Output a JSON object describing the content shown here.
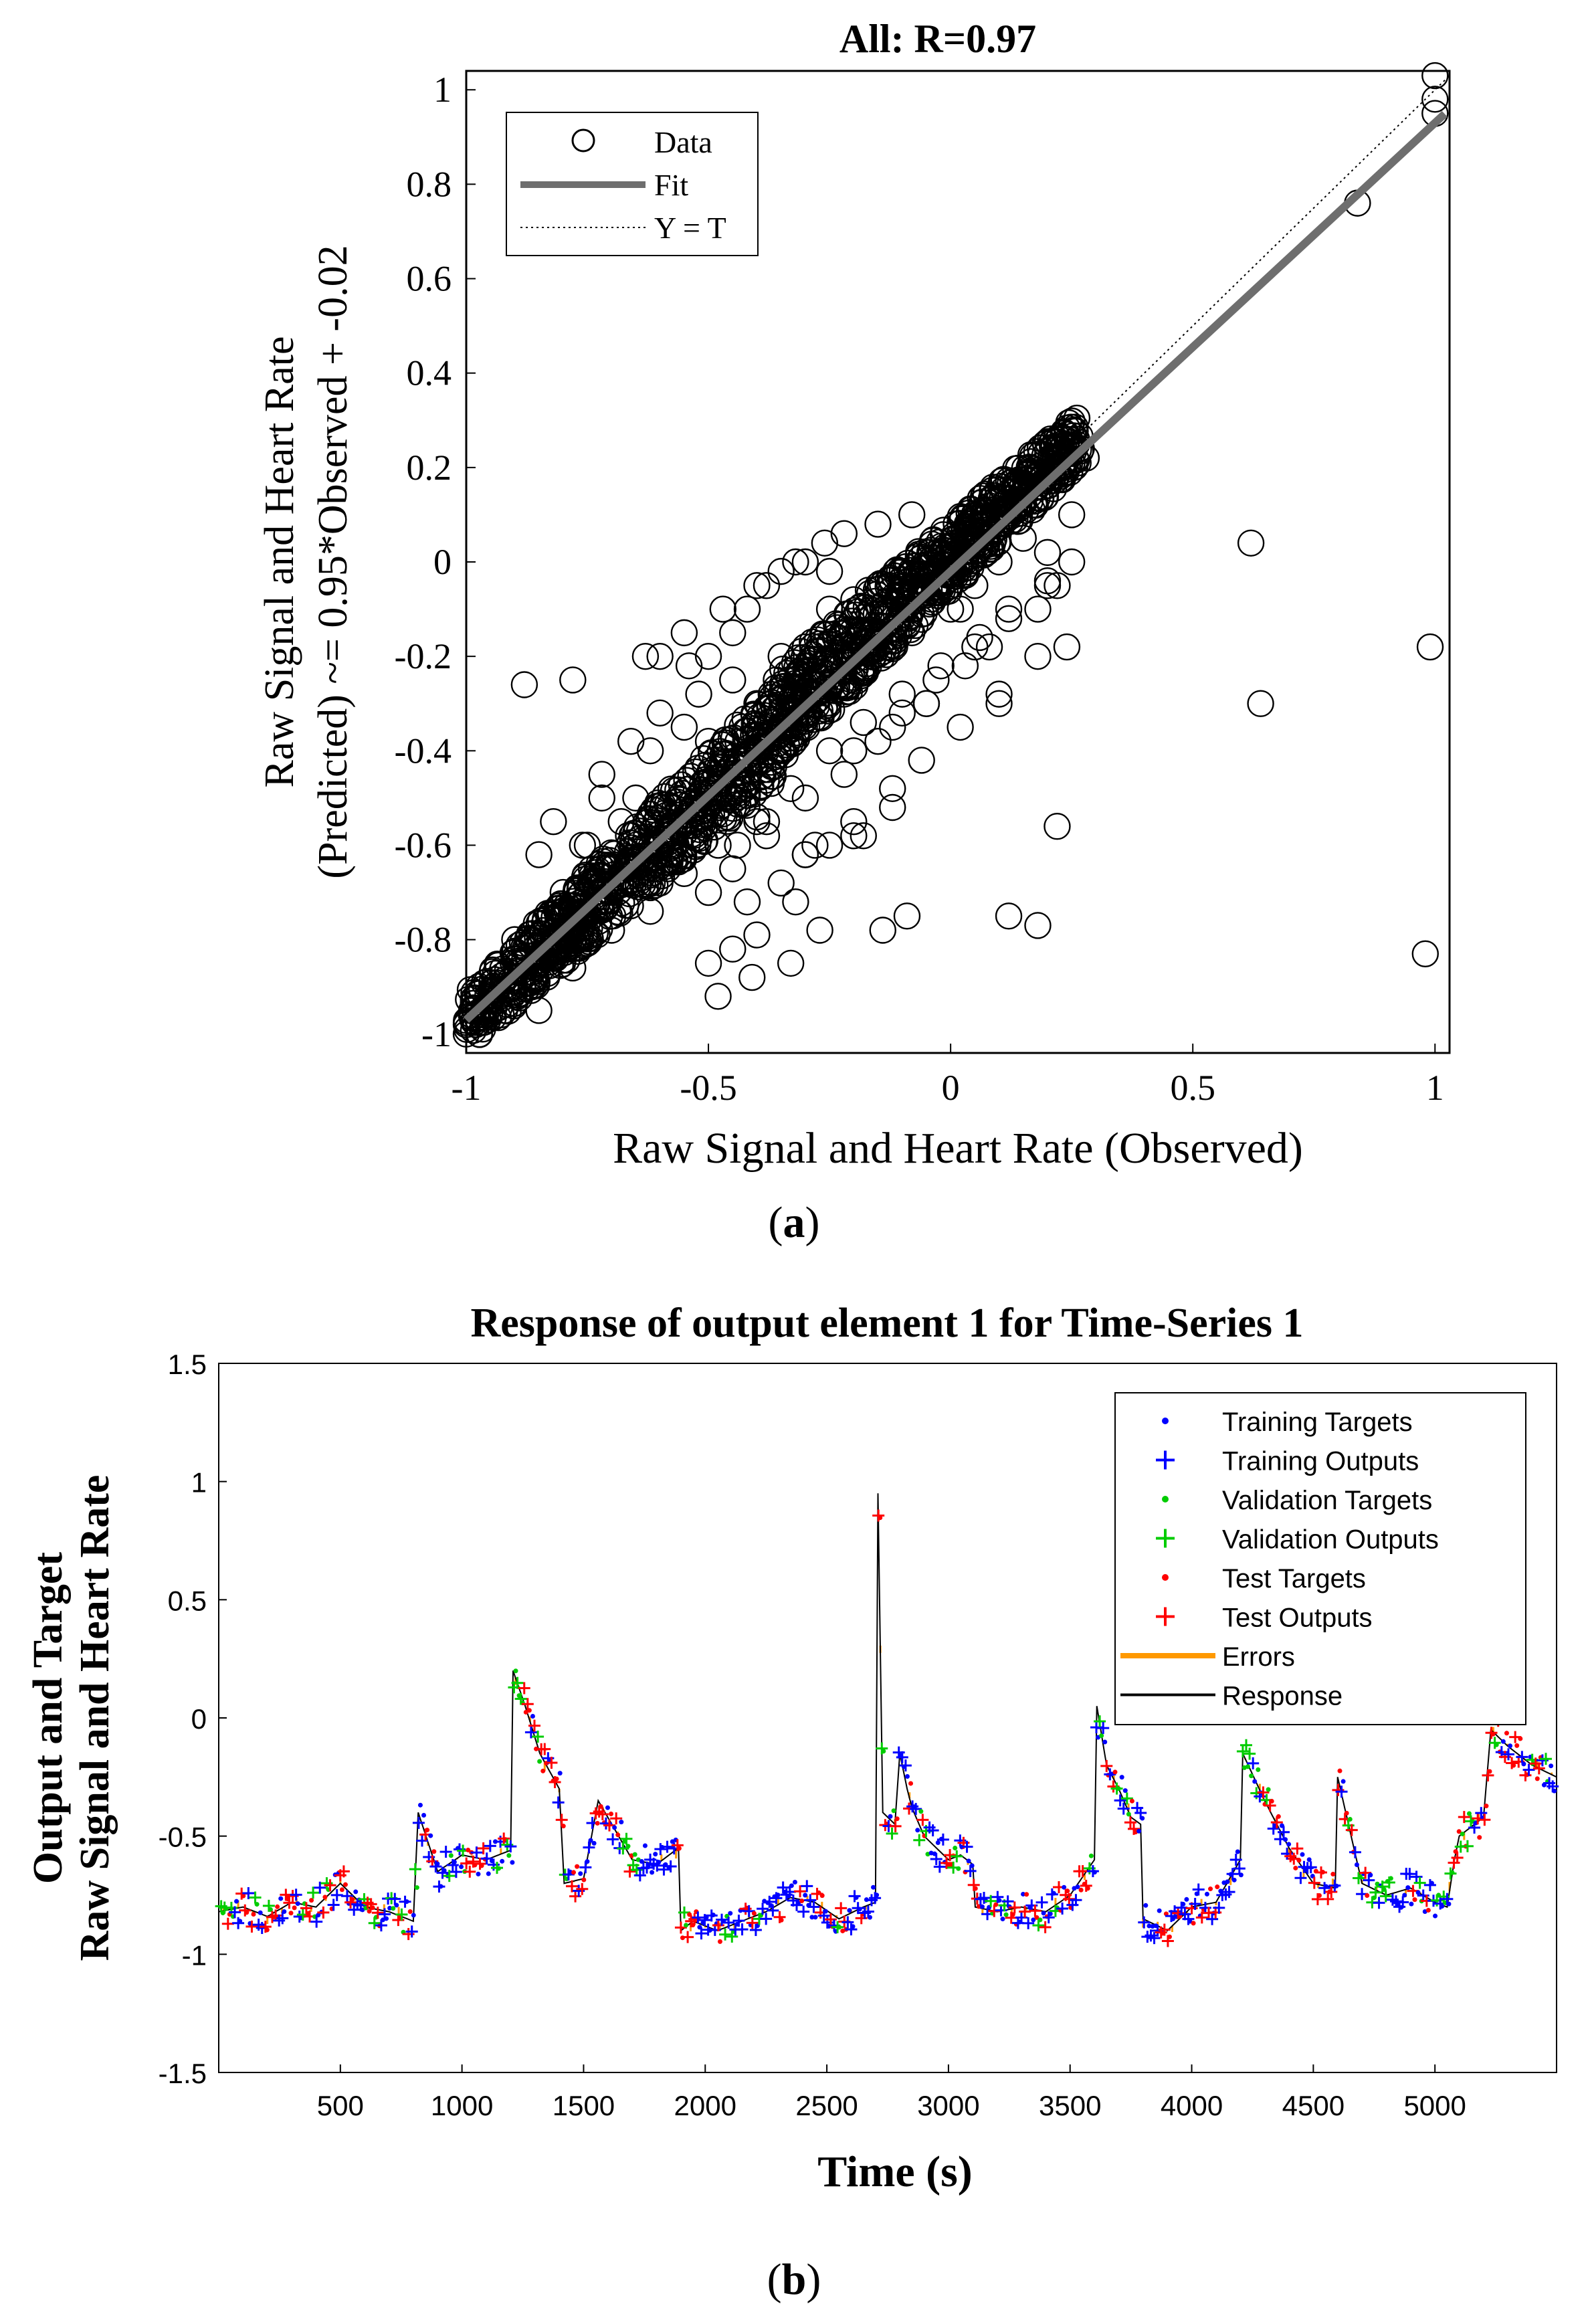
{
  "figure": {
    "caption_a": "a",
    "caption_b": "b"
  },
  "chart_data": [
    {
      "type": "scatter",
      "title": "All: R=0.97",
      "xlabel": "Raw Signal and Heart Rate (Observed)",
      "ylabel_line1": "Raw Signal and Heart Rate",
      "ylabel_line2": "(Predicted) ~= 0.95*Observed + -0.02",
      "xlim": [
        -1,
        1.03
      ],
      "ylim": [
        -1.04,
        1.04
      ],
      "xticks": [
        -1,
        -0.5,
        0,
        0.5,
        1
      ],
      "xtick_labels": [
        "-1",
        "-0.5",
        "0",
        "0.5",
        "1"
      ],
      "yticks": [
        -1,
        -0.8,
        -0.6,
        -0.4,
        -0.2,
        0,
        0.2,
        0.4,
        0.6,
        0.8,
        1
      ],
      "ytick_labels": [
        "-1",
        "-0.8",
        "-0.6",
        "-0.4",
        "-0.2",
        "0",
        "0.2",
        "0.4",
        "0.6",
        "0.8",
        "1"
      ],
      "fit": {
        "slope": 0.95,
        "intercept": -0.02,
        "x_range": [
          -1,
          1
        ]
      },
      "legend": {
        "position": "top-left",
        "entries": [
          {
            "label": "Data",
            "style": "circle"
          },
          {
            "label": "Fit",
            "style": "thick-line"
          },
          {
            "label": "Y = T",
            "style": "dotted-line"
          }
        ]
      },
      "colors": {
        "data": "#000000",
        "fit": "#6e6e6e",
        "identity": "#000000"
      },
      "series": [
        {
          "name": "Data",
          "x": [
            -1,
            -0.98,
            -0.96,
            -0.95,
            -0.93,
            -0.9,
            -0.88,
            -0.85,
            -0.82,
            -0.8,
            -0.78,
            -0.75,
            -0.72,
            -0.7,
            -0.68,
            -0.65,
            -0.62,
            -0.6,
            -0.58,
            -0.55,
            -0.52,
            -0.5,
            -0.48,
            -0.45,
            -0.42,
            -0.4,
            -0.38,
            -0.35,
            -0.32,
            -0.3,
            -0.28,
            -0.25,
            -0.22,
            -0.2,
            -0.18,
            -0.15,
            -0.12,
            -0.1,
            -0.08,
            -0.05,
            -0.02,
            0,
            0.03,
            0.06,
            0.1,
            0.14,
            0.18,
            0.22,
            0.25,
            -0.9,
            -0.85,
            -0.82,
            -0.8,
            -0.75,
            -0.72,
            -0.65,
            -0.62,
            -0.6,
            -0.55,
            -0.5,
            -0.45,
            -0.4,
            -0.35,
            -0.3,
            -0.25,
            -0.2,
            -0.15,
            -0.1,
            -0.05,
            0,
            0.05,
            0.1,
            0.15,
            0.2,
            0.25,
            -0.85,
            -0.78,
            -0.7,
            -0.62,
            -0.55,
            -0.48,
            -0.4,
            -0.33,
            -0.25,
            -0.18,
            -0.1,
            -0.02,
            0.06,
            0.12,
            0.2,
            -0.5,
            -0.45,
            -0.42,
            -0.38,
            -0.35,
            -0.3,
            -0.26,
            -0.22,
            -0.15,
            -0.08,
            -0.2,
            -0.12,
            -0.05,
            0.03,
            0.08,
            0.18,
            0.22,
            0.25,
            -1,
            -0.9,
            -0.76,
            -0.68,
            -0.58,
            -0.5,
            -0.45,
            -0.38,
            -0.3,
            -0.22,
            -0.15,
            -0.1,
            -0.03,
            0.05,
            0.12,
            0.2,
            -0.42,
            -0.35,
            -0.28,
            -0.2,
            -0.12,
            -0.06,
            0.02,
            0.1,
            -0.55,
            -0.47,
            -0.4,
            -0.32,
            -0.25,
            -0.17,
            -0.1,
            -0.02,
            -0.88,
            -0.78,
            -0.63,
            -0.5,
            -0.4,
            -0.3,
            -0.25,
            -0.18,
            -0.12,
            -0.05,
            0.1,
            0.18,
            0.24,
            0.62,
            0.64,
            0.84,
            1,
            1,
            1,
            0.99,
            0.98,
            -0.14,
            -0.09,
            0.12,
            0.18,
            0.22,
            -0.5,
            -0.45,
            -0.4,
            -0.32,
            -0.48,
            -0.41,
            -0.33,
            -0.27,
            -0.72,
            -0.66,
            -0.6,
            -0.52,
            -0.8,
            -0.74,
            -0.68,
            -0.56,
            -0.44,
            -0.38,
            -0.3,
            -0.2,
            -0.6,
            -0.54,
            -0.36,
            -0.28,
            -0.22,
            -0.16,
            -0.08,
            0.02,
            0.28,
            0.27,
            0.26,
            0.24,
            0.22
          ],
          "y": [
            -1,
            -0.98,
            -0.96,
            -0.94,
            -0.92,
            -0.9,
            -0.87,
            -0.85,
            -0.82,
            -0.8,
            -0.77,
            -0.75,
            -0.72,
            -0.7,
            -0.67,
            -0.65,
            -0.62,
            -0.6,
            -0.57,
            -0.55,
            -0.52,
            -0.5,
            -0.47,
            -0.45,
            -0.42,
            -0.4,
            -0.38,
            -0.35,
            -0.32,
            -0.3,
            -0.28,
            -0.26,
            -0.23,
            -0.21,
            -0.19,
            -0.16,
            -0.14,
            -0.12,
            -0.1,
            -0.07,
            -0.04,
            -0.02,
            0,
            0.04,
            0.08,
            0.12,
            0.16,
            0.2,
            0.24,
            -0.8,
            -0.62,
            -0.55,
            -0.7,
            -0.6,
            -0.5,
            -0.5,
            -0.4,
            -0.68,
            -0.35,
            -0.38,
            -0.25,
            -0.3,
            -0.2,
            -0.18,
            -0.1,
            -0.08,
            -0.05,
            -0.02,
            -0.05,
            -0.1,
            -0.05,
            0,
            0.05,
            0.02,
            0.1,
            -0.95,
            -0.86,
            -0.78,
            -0.74,
            -0.66,
            -0.6,
            -0.54,
            -0.48,
            -0.4,
            -0.34,
            -0.28,
            -0.22,
            -0.16,
            -0.1,
            -0.04,
            -0.2,
            -0.15,
            -0.1,
            -0.05,
            -0.02,
            0,
            0.04,
            0.06,
            0.08,
            0.1,
            -0.4,
            -0.35,
            -0.3,
            -0.22,
            -0.18,
            -0.1,
            -0.05,
            0,
            -0.98,
            -0.88,
            -0.6,
            -0.55,
            -0.62,
            -0.7,
            -0.65,
            -0.58,
            -0.5,
            -0.45,
            -0.38,
            -0.32,
            -0.25,
            -0.18,
            -0.12,
            -0.05,
            -0.72,
            -0.68,
            -0.6,
            -0.55,
            -0.48,
            -0.42,
            -0.35,
            -0.28,
            -0.15,
            -0.1,
            -0.05,
            0,
            -0.02,
            -0.06,
            -0.1,
            0.02,
            -0.26,
            -0.25,
            -0.2,
            -0.55,
            -0.55,
            -0.62,
            -0.6,
            -0.58,
            -0.52,
            -0.3,
            -0.3,
            -0.2,
            -0.18,
            0.04,
            -0.3,
            0.76,
            1.03,
            0.98,
            0.95,
            -0.18,
            -0.83,
            -0.78,
            -0.75,
            -0.75,
            -0.77,
            -0.56,
            -0.85,
            -0.82,
            -0.79,
            -0.72,
            -0.92,
            -0.88,
            -0.85,
            -0.78,
            -0.45,
            -0.38,
            -0.32,
            -0.28,
            -0.8,
            -0.74,
            -0.68,
            -0.62,
            -0.6,
            -0.55,
            -0.62,
            -0.58,
            -0.2,
            -0.22,
            -0.25,
            -0.26,
            -0.28,
            -0.2,
            -0.15,
            -0.1,
            0.22,
            0.24,
            0.26,
            0.27,
            0.24
          ]
        }
      ]
    },
    {
      "type": "line",
      "title": "Response of output element 1 for Time-Series 1",
      "xlabel": "Time (s)",
      "ylabel_line1": "Output and Target",
      "ylabel_line2": "Raw Signal and Heart Rate",
      "xlim": [
        0,
        5500
      ],
      "ylim": [
        -1.5,
        1.5
      ],
      "xticks": [
        500,
        1000,
        1500,
        2000,
        2500,
        3000,
        3500,
        4000,
        4500,
        5000
      ],
      "xtick_labels": [
        "500",
        "1000",
        "1500",
        "2000",
        "2500",
        "3000",
        "3500",
        "4000",
        "4500",
        "5000"
      ],
      "yticks": [
        -1.5,
        -1,
        -0.5,
        0,
        0.5,
        1,
        1.5
      ],
      "ytick_labels": [
        "-1.5",
        "-1",
        "-0.5",
        "0",
        "0.5",
        "1",
        "1.5"
      ],
      "legend": {
        "position": "top-right",
        "entries": [
          {
            "label": "Training Targets",
            "color": "#0000ff",
            "style": "dot"
          },
          {
            "label": "Training Outputs",
            "color": "#0000ff",
            "style": "plus"
          },
          {
            "label": "Validation Targets",
            "color": "#00cc00",
            "style": "dot"
          },
          {
            "label": "Validation Outputs",
            "color": "#00cc00",
            "style": "plus"
          },
          {
            "label": "Test Targets",
            "color": "#ff0000",
            "style": "dot"
          },
          {
            "label": "Test Outputs",
            "color": "#ff0000",
            "style": "plus"
          },
          {
            "label": "Errors",
            "color": "#ff9900",
            "style": "line"
          },
          {
            "label": "Response",
            "color": "#000000",
            "style": "line"
          }
        ]
      },
      "series": [
        {
          "name": "Response",
          "x": [
            0,
            100,
            200,
            300,
            400,
            500,
            600,
            700,
            800,
            820,
            900,
            1000,
            1100,
            1200,
            1210,
            1260,
            1320,
            1400,
            1420,
            1500,
            1560,
            1700,
            1800,
            1890,
            1900,
            1950,
            2050,
            2150,
            2250,
            2350,
            2450,
            2550,
            2650,
            2700,
            2710,
            2730,
            2780,
            2800,
            2830,
            2850,
            2900,
            3000,
            3050,
            3100,
            3110,
            3200,
            3300,
            3400,
            3500,
            3600,
            3610,
            3650,
            3700,
            3750,
            3790,
            3800,
            3900,
            4000,
            4100,
            4200,
            4210,
            4300,
            4400,
            4500,
            4590,
            4600,
            4700,
            4800,
            4900,
            5000,
            5050,
            5080,
            5100,
            5200,
            5230,
            5300,
            5400,
            5500
          ],
          "y": [
            -0.82,
            -0.8,
            -0.84,
            -0.78,
            -0.8,
            -0.7,
            -0.8,
            -0.82,
            -0.86,
            -0.4,
            -0.65,
            -0.58,
            -0.6,
            -0.56,
            0.2,
            0.05,
            -0.15,
            -0.3,
            -0.7,
            -0.68,
            -0.35,
            -0.6,
            -0.62,
            -0.55,
            -0.9,
            -0.86,
            -0.9,
            -0.86,
            -0.82,
            -0.76,
            -0.78,
            -0.85,
            -0.8,
            -0.78,
            0.95,
            -0.4,
            -0.45,
            -0.15,
            -0.3,
            -0.38,
            -0.5,
            -0.6,
            -0.58,
            -0.62,
            -0.8,
            -0.82,
            -0.8,
            -0.82,
            -0.75,
            -0.6,
            0.05,
            -0.2,
            -0.3,
            -0.42,
            -0.45,
            -0.85,
            -0.9,
            -0.8,
            -0.78,
            -0.6,
            -0.15,
            -0.35,
            -0.55,
            -0.7,
            -0.72,
            -0.25,
            -0.7,
            -0.75,
            -0.72,
            -0.78,
            -0.8,
            -0.6,
            -0.5,
            -0.42,
            -0.05,
            -0.12,
            -0.2,
            -0.25
          ]
        }
      ]
    }
  ]
}
